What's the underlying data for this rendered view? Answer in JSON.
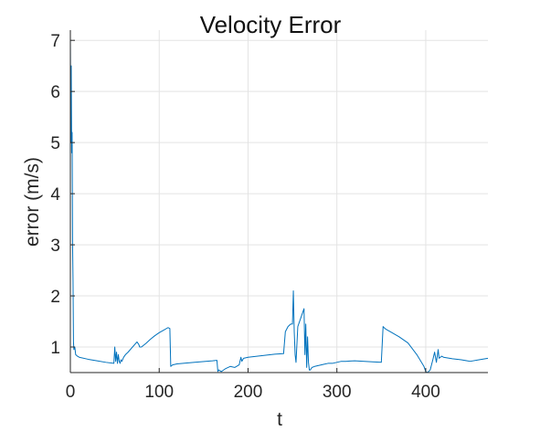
{
  "chart_data": {
    "type": "line",
    "title": "Velocity Error",
    "xlabel": "t",
    "ylabel": "error (m/s)",
    "xlim": [
      0,
      470
    ],
    "ylim": [
      0.5,
      7.2
    ],
    "xticks": [
      "0",
      "100",
      "200",
      "300",
      "400"
    ],
    "yticks": [
      "1",
      "2",
      "3",
      "4",
      "5",
      "6",
      "7"
    ],
    "grid": true,
    "series": [
      {
        "name": "",
        "color": "#0072bd",
        "x": [
          0,
          0.5,
          1,
          1.5,
          2,
          2.5,
          3,
          3.5,
          4,
          5,
          6,
          8,
          10,
          20,
          30,
          40,
          49,
          50,
          51,
          52,
          53,
          54,
          55,
          56,
          57,
          58,
          60,
          62,
          65,
          70,
          75,
          77,
          78,
          80,
          85,
          90,
          95,
          100,
          105,
          110,
          112,
          113,
          115,
          120,
          140,
          160,
          165,
          166,
          167,
          170,
          175,
          180,
          185,
          190,
          192,
          193,
          195,
          200,
          210,
          220,
          230,
          240,
          242,
          245,
          248,
          250,
          251,
          252,
          253,
          254,
          256,
          258,
          260,
          262,
          263,
          264,
          265,
          266,
          267,
          268,
          269,
          270,
          272,
          275,
          280,
          285,
          290,
          295,
          300,
          305,
          310,
          320,
          340,
          350,
          352,
          353,
          355,
          360,
          370,
          380,
          390,
          398,
          400,
          402,
          405,
          408,
          410,
          412,
          414,
          415,
          418,
          420,
          430,
          440,
          450,
          460,
          470
        ],
        "y": [
          7.1,
          5.0,
          6.5,
          4.8,
          5.2,
          3.0,
          2.3,
          1.1,
          0.95,
          1.0,
          0.85,
          0.82,
          0.8,
          0.76,
          0.73,
          0.7,
          0.68,
          1.0,
          0.72,
          0.9,
          0.68,
          0.85,
          0.72,
          0.68,
          0.75,
          0.72,
          0.8,
          0.85,
          0.9,
          1.0,
          1.1,
          1.05,
          1.0,
          1.0,
          1.07,
          1.15,
          1.22,
          1.28,
          1.33,
          1.38,
          1.36,
          0.62,
          0.65,
          0.67,
          0.7,
          0.73,
          0.74,
          0.52,
          0.55,
          0.52,
          0.58,
          0.62,
          0.6,
          0.65,
          0.8,
          0.72,
          0.78,
          0.8,
          0.82,
          0.84,
          0.86,
          0.87,
          1.3,
          1.4,
          1.45,
          1.45,
          2.1,
          1.3,
          0.85,
          0.7,
          1.4,
          1.5,
          1.6,
          1.7,
          1.75,
          0.85,
          1.45,
          0.6,
          1.2,
          0.7,
          0.55,
          0.55,
          0.6,
          0.62,
          0.64,
          0.66,
          0.68,
          0.68,
          0.7,
          0.72,
          0.72,
          0.73,
          0.71,
          0.7,
          1.4,
          1.38,
          1.35,
          1.3,
          1.2,
          1.08,
          0.85,
          0.62,
          0.52,
          0.45,
          0.55,
          0.75,
          0.9,
          0.7,
          0.95,
          0.78,
          0.82,
          0.8,
          0.77,
          0.75,
          0.72,
          0.75,
          0.78
        ]
      }
    ]
  }
}
